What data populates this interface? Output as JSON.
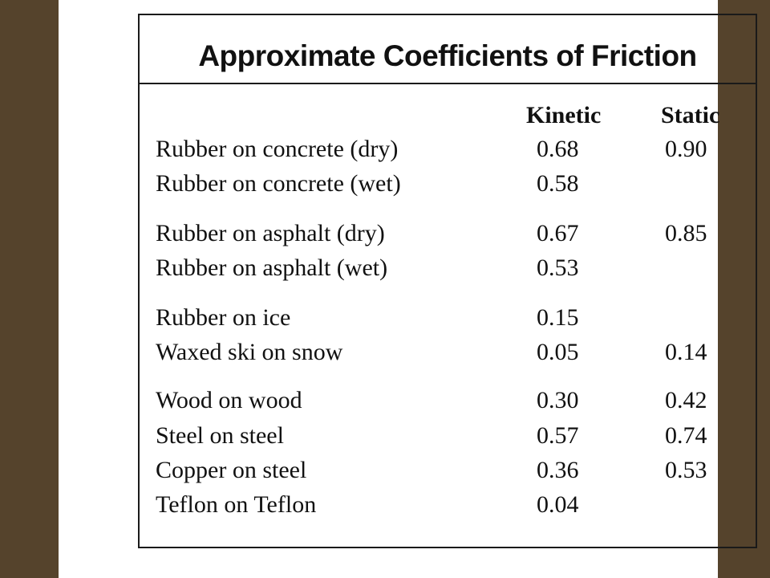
{
  "title": "Approximate Coefficients of Friction",
  "columns": {
    "kinetic": "Kinetic",
    "static": "Static"
  },
  "rows": [
    {
      "material": "Rubber on concrete (dry)",
      "kinetic": "0.68",
      "static": "0.90"
    },
    {
      "material": "Rubber on concrete (wet)",
      "kinetic": "0.58",
      "static": ""
    },
    {
      "material": "Rubber on asphalt (dry)",
      "kinetic": "0.67",
      "static": "0.85"
    },
    {
      "material": "Rubber on asphalt (wet)",
      "kinetic": "0.53",
      "static": ""
    },
    {
      "material": "Rubber on ice",
      "kinetic": "0.15",
      "static": ""
    },
    {
      "material": "Waxed ski on snow",
      "kinetic": "0.05",
      "static": "0.14"
    },
    {
      "material": "Wood on wood",
      "kinetic": "0.30",
      "static": "0.42"
    },
    {
      "material": "Steel on steel",
      "kinetic": "0.57",
      "static": "0.74"
    },
    {
      "material": "Copper on steel",
      "kinetic": "0.36",
      "static": "0.53"
    },
    {
      "material": "Teflon on Teflon",
      "kinetic": "0.04",
      "static": ""
    }
  ]
}
